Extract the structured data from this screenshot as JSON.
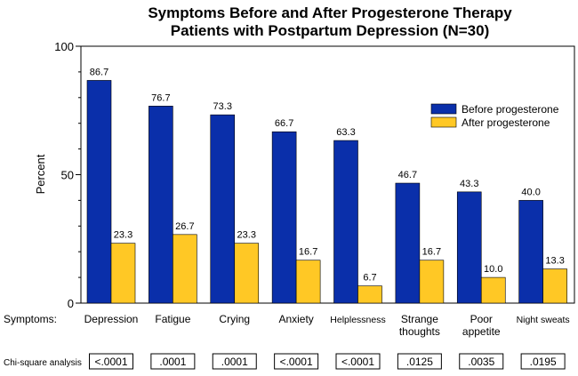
{
  "chart_data": {
    "type": "bar",
    "title": "Symptoms Before and After Progesterone Therapy",
    "subtitle": "Patients with Postpartum Depression (N=30)",
    "ylabel": "Percent",
    "ylim": [
      0,
      100
    ],
    "yticks": [
      0,
      50,
      100
    ],
    "categories": [
      [
        "Depression"
      ],
      [
        "Fatigue"
      ],
      [
        "Crying"
      ],
      [
        "Anxiety"
      ],
      [
        "Helplessness"
      ],
      [
        "Strange",
        "thoughts"
      ],
      [
        "Poor",
        "appetite"
      ],
      [
        "Night sweats"
      ]
    ],
    "series": [
      {
        "name": "Before progesterone",
        "color": "#0a2faa",
        "values": [
          86.7,
          76.7,
          73.3,
          66.7,
          63.3,
          46.7,
          43.3,
          40.0
        ],
        "labels": [
          "86.7",
          "76.7",
          "73.3",
          "66.7",
          "63.3",
          "46.7",
          "43.3",
          "40.0"
        ]
      },
      {
        "name": "After progesterone",
        "color": "#ffc825",
        "values": [
          23.3,
          26.7,
          23.3,
          16.7,
          6.7,
          16.7,
          10.0,
          13.3
        ],
        "labels": [
          "23.3",
          "26.7",
          "23.3",
          "16.7",
          "6.7",
          "16.7",
          "10.0",
          "13.3"
        ]
      }
    ],
    "legend_position": "top-right",
    "grid": false,
    "row_label": "Symptoms:",
    "chi_square": {
      "label": "Chi-square analysis",
      "values": [
        "<.0001",
        ".0001",
        ".0001",
        "<.0001",
        "<.0001",
        ".0125",
        ".0035",
        ".0195"
      ]
    }
  }
}
